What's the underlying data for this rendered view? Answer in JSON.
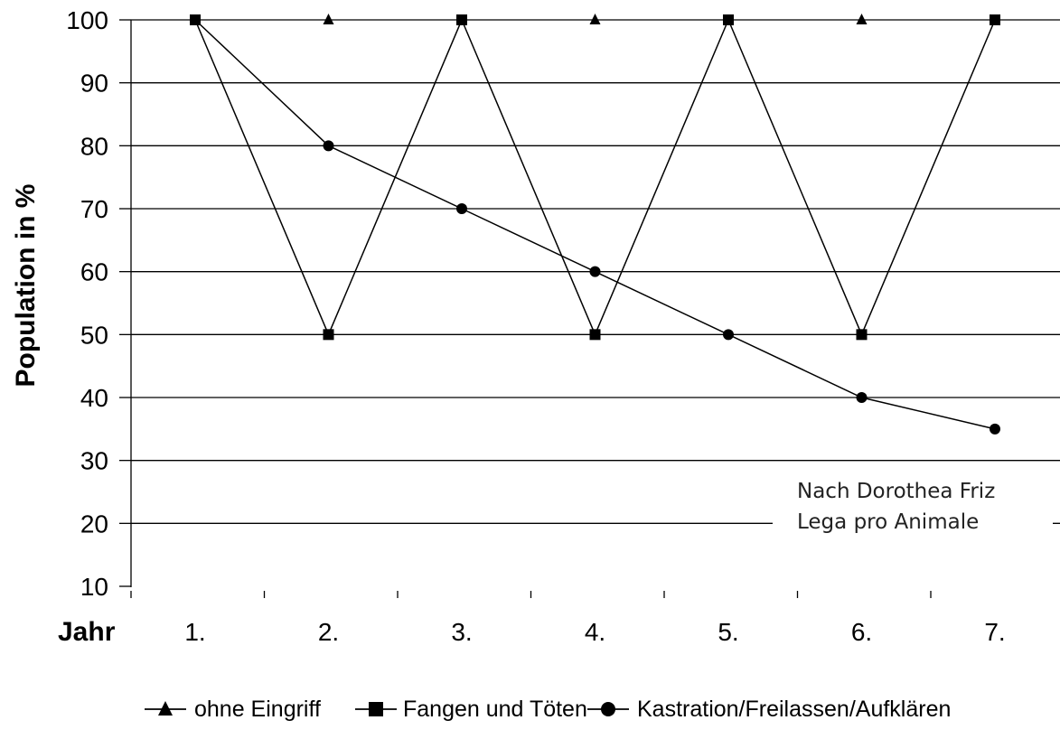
{
  "chart_data": {
    "type": "line",
    "xlabel": "Jahr",
    "ylabel": "Population in %",
    "categories": [
      "1.",
      "2.",
      "3.",
      "4.",
      "5.",
      "6.",
      "7."
    ],
    "yticks": [
      10,
      20,
      30,
      40,
      50,
      60,
      70,
      80,
      90,
      100
    ],
    "ylim": [
      0,
      100
    ],
    "grid": true,
    "legend_position": "bottom",
    "series": [
      {
        "name": "ohne Eingriff",
        "marker": "triangle",
        "values": [
          100,
          100,
          100,
          100,
          100,
          100,
          100
        ]
      },
      {
        "name": "Fangen und Töten",
        "marker": "square",
        "values": [
          100,
          50,
          100,
          50,
          100,
          50,
          100
        ]
      },
      {
        "name": "Kastration/Freilassen/Aufklären",
        "marker": "circle",
        "values": [
          100,
          80,
          70,
          60,
          50,
          40,
          35
        ]
      }
    ],
    "annotation": [
      "Nach Dorothea Friz",
      "Lega pro Animale"
    ],
    "line_color": "#000000"
  }
}
